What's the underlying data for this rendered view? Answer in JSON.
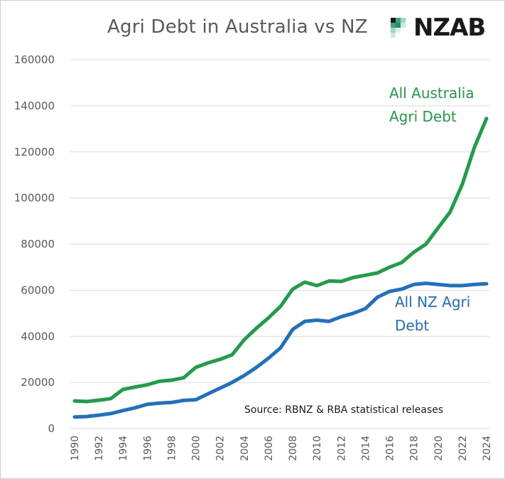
{
  "header": {
    "title": "Agri Debt in Australia vs NZ",
    "logo_text": "NZAB"
  },
  "colors": {
    "australia": "#1e9e46",
    "nz": "#1f6fc2",
    "grid": "#d9d9d9",
    "logo_mark": "#3aa67c"
  },
  "chart_data": {
    "type": "line",
    "title": "Agri Debt in Australia vs NZ",
    "xlabel": "",
    "ylabel": "",
    "ylim": [
      0,
      160000
    ],
    "yticks": [
      "0",
      "20000",
      "40000",
      "60000",
      "80000",
      "100000",
      "120000",
      "140000",
      "160000"
    ],
    "x": [
      1990,
      1991,
      1992,
      1993,
      1994,
      1995,
      1996,
      1997,
      1998,
      1999,
      2000,
      2001,
      2002,
      2003,
      2004,
      2005,
      2006,
      2007,
      2008,
      2009,
      2010,
      2011,
      2012,
      2013,
      2014,
      2015,
      2016,
      2017,
      2018,
      2019,
      2020,
      2021,
      2022,
      2023,
      2024
    ],
    "xticks": [
      "1990",
      "1992",
      "1994",
      "1996",
      "1998",
      "2000",
      "2002",
      "2004",
      "2006",
      "2008",
      "2010",
      "2012",
      "2014",
      "2016",
      "2018",
      "2020",
      "2022",
      "2024"
    ],
    "grid": true,
    "series": [
      {
        "name": "All Australia Agri Debt",
        "label_lines": [
          "All Australia",
          "Agri Debt"
        ],
        "color": "#1e9e46",
        "values": [
          12000,
          11700,
          12300,
          13000,
          17000,
          18000,
          19000,
          20500,
          21000,
          22000,
          26500,
          28500,
          30000,
          32000,
          38500,
          43500,
          48000,
          53000,
          60500,
          63500,
          62000,
          64000,
          63800,
          65500,
          66500,
          67500,
          70000,
          72000,
          76500,
          80000,
          87000,
          94000,
          106000,
          122000,
          134500
        ]
      },
      {
        "name": "All NZ Agri Debt",
        "label_lines": [
          "All NZ Agri",
          "Debt"
        ],
        "color": "#1f6fc2",
        "values": [
          5000,
          5200,
          5800,
          6500,
          7800,
          9000,
          10500,
          11000,
          11300,
          12200,
          12500,
          15000,
          17500,
          20000,
          23000,
          26500,
          30500,
          35000,
          43000,
          46500,
          47000,
          46500,
          48500,
          50000,
          52000,
          57000,
          59500,
          60500,
          62500,
          63000,
          62500,
          62000,
          62000,
          62500,
          62800
        ]
      }
    ],
    "annotation": "Source: RBNZ & RBA statistical releases"
  }
}
